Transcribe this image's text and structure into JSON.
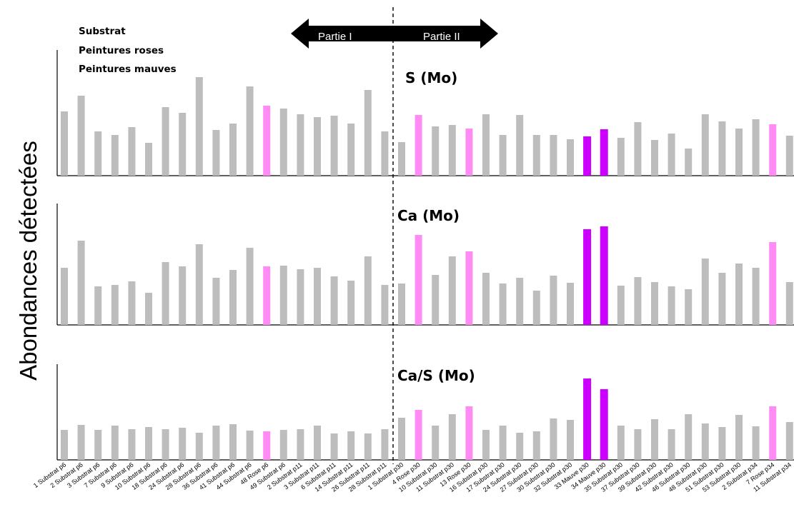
{
  "chart_data": {
    "type": "bar",
    "ylabel": "Abondances détectées",
    "legend": [
      {
        "label": "Substrat",
        "color": "#BDBDBD"
      },
      {
        "label": "Peintures roses",
        "color": "#FF8CF5"
      },
      {
        "label": "Peintures mauves",
        "color": "#CC00FF"
      }
    ],
    "arrows": {
      "left_label": "Partie I",
      "right_label": "Partie II"
    },
    "categories": [
      "1 Substrat p6",
      "2 Substrat p6",
      "3 Substrat p6",
      "7 Substrat p6",
      "9 Substrat p6",
      "10 Substrat p6",
      "18 Substrat p6",
      "24 Substrat p6",
      "28 Substrat p6",
      "36 Substrat p6",
      "41 Substrat p6",
      "44 Substrat p6",
      "48 Rose p6",
      "49 Substrat p6",
      "2 Substrat p11",
      "3 Substrat p11",
      "6 Substrat p11",
      "14 Substrat p11",
      "26 Substrat p11",
      "28 Substrat p11",
      "1 Substrat p30",
      "4 Rose p30",
      "10 Substrat p30",
      "11 Substrat p30",
      "13 Rose p30",
      "16 Substrat p30",
      "17 Substrat p30",
      "24 Substrat p30",
      "27 Substrat p30",
      "30 Substrat p30",
      "32 Substrat p30",
      "33 Mauve p30",
      "34 Mauve p30",
      "35 Substrat p30",
      "37 Substrat p30",
      "39 Substrat p30",
      "42 Substrat p30",
      "46 Substrat p30",
      "48 Substrat p30",
      "51 Substrat p30",
      "53 Substrat p30",
      "2 Substrat p34",
      "7 Rose p34",
      "11 Substrat p34"
    ],
    "category_types": [
      "s",
      "s",
      "s",
      "s",
      "s",
      "s",
      "s",
      "s",
      "s",
      "s",
      "s",
      "s",
      "r",
      "s",
      "s",
      "s",
      "s",
      "s",
      "s",
      "s",
      "s",
      "r",
      "s",
      "s",
      "r",
      "s",
      "s",
      "s",
      "s",
      "s",
      "s",
      "m",
      "m",
      "s",
      "s",
      "s",
      "s",
      "s",
      "s",
      "s",
      "s",
      "s",
      "r",
      "s"
    ],
    "panels": [
      {
        "title": "S (Mo)",
        "values": [
          90,
          112,
          62,
          57,
          68,
          46,
          96,
          88,
          138,
          64,
          73,
          125,
          98,
          94,
          86,
          82,
          84,
          73,
          120,
          62,
          47,
          85,
          69,
          71,
          66,
          86,
          57,
          85,
          57,
          57,
          51,
          55,
          65,
          53,
          75,
          50,
          59,
          38,
          86,
          76,
          66,
          79,
          72,
          56
        ]
      },
      {
        "title": "Ca (Mo)",
        "values": [
          80,
          118,
          54,
          56,
          61,
          45,
          88,
          82,
          113,
          66,
          77,
          108,
          82,
          83,
          78,
          80,
          68,
          62,
          96,
          56,
          58,
          126,
          70,
          96,
          103,
          73,
          58,
          66,
          48,
          69,
          59,
          134,
          138,
          55,
          67,
          60,
          54,
          50,
          93,
          73,
          86,
          80,
          116,
          60
        ]
      },
      {
        "title": "Ca/S (Mo)",
        "values": [
          42,
          49,
          42,
          48,
          43,
          46,
          43,
          45,
          38,
          48,
          50,
          41,
          40,
          42,
          43,
          48,
          37,
          40,
          37,
          43,
          59,
          70,
          48,
          64,
          75,
          42,
          48,
          38,
          40,
          58,
          56,
          114,
          99,
          48,
          43,
          57,
          43,
          64,
          51,
          46,
          63,
          47,
          75,
          53
        ]
      }
    ]
  }
}
